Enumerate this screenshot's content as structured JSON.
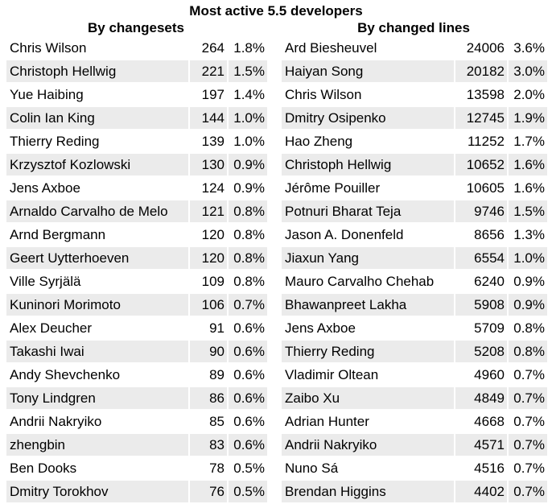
{
  "title": "Most active 5.5 developers",
  "by_changesets": {
    "heading": "By changesets",
    "rows": [
      {
        "name": "Chris Wilson",
        "count": "264",
        "pct": "1.8%"
      },
      {
        "name": "Christoph Hellwig",
        "count": "221",
        "pct": "1.5%"
      },
      {
        "name": "Yue Haibing",
        "count": "197",
        "pct": "1.4%"
      },
      {
        "name": "Colin Ian King",
        "count": "144",
        "pct": "1.0%"
      },
      {
        "name": "Thierry Reding",
        "count": "139",
        "pct": "1.0%"
      },
      {
        "name": "Krzysztof Kozlowski",
        "count": "130",
        "pct": "0.9%"
      },
      {
        "name": "Jens Axboe",
        "count": "124",
        "pct": "0.9%"
      },
      {
        "name": "Arnaldo Carvalho de Melo",
        "count": "121",
        "pct": "0.8%"
      },
      {
        "name": "Arnd Bergmann",
        "count": "120",
        "pct": "0.8%"
      },
      {
        "name": "Geert Uytterhoeven",
        "count": "120",
        "pct": "0.8%"
      },
      {
        "name": "Ville Syrjälä",
        "count": "109",
        "pct": "0.8%"
      },
      {
        "name": "Kuninori Morimoto",
        "count": "106",
        "pct": "0.7%"
      },
      {
        "name": "Alex Deucher",
        "count": "91",
        "pct": "0.6%"
      },
      {
        "name": "Takashi Iwai",
        "count": "90",
        "pct": "0.6%"
      },
      {
        "name": "Andy Shevchenko",
        "count": "89",
        "pct": "0.6%"
      },
      {
        "name": "Tony Lindgren",
        "count": "86",
        "pct": "0.6%"
      },
      {
        "name": "Andrii Nakryiko",
        "count": "85",
        "pct": "0.6%"
      },
      {
        "name": "zhengbin",
        "count": "83",
        "pct": "0.6%"
      },
      {
        "name": "Ben Dooks",
        "count": "78",
        "pct": "0.5%"
      },
      {
        "name": "Dmitry Torokhov",
        "count": "76",
        "pct": "0.5%"
      }
    ]
  },
  "by_changed_lines": {
    "heading": "By changed lines",
    "rows": [
      {
        "name": "Ard Biesheuvel",
        "count": "24006",
        "pct": "3.6%"
      },
      {
        "name": "Haiyan Song",
        "count": "20182",
        "pct": "3.0%"
      },
      {
        "name": "Chris Wilson",
        "count": "13598",
        "pct": "2.0%"
      },
      {
        "name": "Dmitry Osipenko",
        "count": "12745",
        "pct": "1.9%"
      },
      {
        "name": "Hao Zheng",
        "count": "11252",
        "pct": "1.7%"
      },
      {
        "name": "Christoph Hellwig",
        "count": "10652",
        "pct": "1.6%"
      },
      {
        "name": "Jérôme Pouiller",
        "count": "10605",
        "pct": "1.6%"
      },
      {
        "name": "Potnuri Bharat Teja",
        "count": "9746",
        "pct": "1.5%"
      },
      {
        "name": "Jason A. Donenfeld",
        "count": "8656",
        "pct": "1.3%"
      },
      {
        "name": "Jiaxun Yang",
        "count": "6554",
        "pct": "1.0%"
      },
      {
        "name": "Mauro Carvalho Chehab",
        "count": "6240",
        "pct": "0.9%"
      },
      {
        "name": "Bhawanpreet Lakha",
        "count": "5908",
        "pct": "0.9%"
      },
      {
        "name": "Jens Axboe",
        "count": "5709",
        "pct": "0.8%"
      },
      {
        "name": "Thierry Reding",
        "count": "5208",
        "pct": "0.8%"
      },
      {
        "name": "Vladimir Oltean",
        "count": "4960",
        "pct": "0.7%"
      },
      {
        "name": "Zaibo Xu",
        "count": "4849",
        "pct": "0.7%"
      },
      {
        "name": "Adrian Hunter",
        "count": "4668",
        "pct": "0.7%"
      },
      {
        "name": "Andrii Nakryiko",
        "count": "4571",
        "pct": "0.7%"
      },
      {
        "name": "Nuno Sá",
        "count": "4516",
        "pct": "0.7%"
      },
      {
        "name": "Brendan Higgins",
        "count": "4402",
        "pct": "0.7%"
      }
    ]
  }
}
